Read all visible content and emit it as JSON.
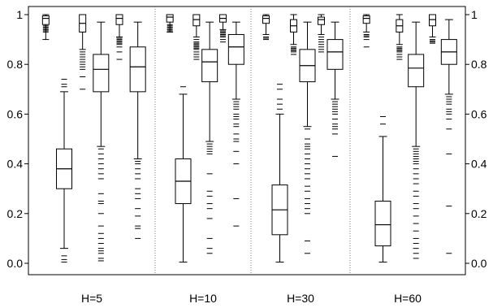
{
  "chart_data": {
    "type": "boxplot",
    "title": "",
    "xlabel": "",
    "ylabel": "",
    "ylim": [
      0.0,
      1.0
    ],
    "yticks": [
      0.0,
      0.2,
      0.4,
      0.6,
      0.8,
      1.0
    ],
    "ytick_labels": [
      "0.0",
      "0.2",
      "0.4",
      "0.6",
      "0.8",
      "1"
    ],
    "y_axis_both_sides": true,
    "grid": false,
    "group_separators": "dotted",
    "groups": [
      {
        "label": "H=5",
        "boxes": [
          {
            "whisker_low": 0.9,
            "q1": 0.96,
            "median": 0.985,
            "q3": 0.995,
            "whisker_high": 1.0,
            "outliers": [
              0.955,
              0.95,
              0.945,
              0.94,
              0.935,
              0.93
            ]
          },
          {
            "whisker_low": 0.06,
            "q1": 0.3,
            "median": 0.38,
            "q3": 0.46,
            "whisker_high": 0.69,
            "outliers": [
              0.74,
              0.72,
              0.71,
              0.03,
              0.015,
              0.005
            ]
          },
          {
            "whisker_low": 0.86,
            "q1": 0.93,
            "median": 0.965,
            "q3": 1.0,
            "whisker_high": 1.0,
            "outliers": [
              0.85,
              0.84,
              0.83,
              0.82,
              0.81,
              0.8,
              0.79,
              0.78,
              0.75,
              0.7
            ]
          },
          {
            "whisker_low": 0.47,
            "q1": 0.69,
            "median": 0.78,
            "q3": 0.84,
            "whisker_high": 0.97,
            "outliers": [
              0.46,
              0.44,
              0.42,
              0.4,
              0.38,
              0.36,
              0.34,
              0.28,
              0.25,
              0.24,
              0.2,
              0.15,
              0.12,
              0.1,
              0.08,
              0.06,
              0.05,
              0.04,
              0.02,
              0.01
            ]
          },
          {
            "whisker_low": 0.91,
            "q1": 0.96,
            "median": 0.985,
            "q3": 1.0,
            "whisker_high": 1.0,
            "outliers": [
              0.905,
              0.9,
              0.895,
              0.89,
              0.885,
              0.88,
              0.87,
              0.85,
              0.82
            ]
          },
          {
            "whisker_low": 0.42,
            "q1": 0.69,
            "median": 0.79,
            "q3": 0.87,
            "whisker_high": 0.97,
            "outliers": [
              0.41,
              0.4,
              0.38,
              0.36,
              0.34,
              0.3,
              0.28,
              0.26,
              0.22,
              0.19,
              0.15,
              0.14,
              0.1
            ]
          }
        ]
      },
      {
        "label": "H=10",
        "boxes": [
          {
            "whisker_low": 0.93,
            "q1": 0.97,
            "median": 0.99,
            "q3": 1.0,
            "whisker_high": 1.0,
            "outliers": [
              0.96,
              0.955,
              0.95,
              0.945,
              0.94,
              0.935,
              0.93
            ]
          },
          {
            "whisker_low": 0.005,
            "q1": 0.24,
            "median": 0.33,
            "q3": 0.42,
            "whisker_high": 0.68,
            "outliers": [
              0.71
            ]
          },
          {
            "whisker_low": 0.91,
            "q1": 0.955,
            "median": 0.98,
            "q3": 1.0,
            "whisker_high": 1.0,
            "outliers": [
              0.9,
              0.89,
              0.885,
              0.88,
              0.875,
              0.87,
              0.865,
              0.86,
              0.85,
              0.84,
              0.83,
              0.82
            ]
          },
          {
            "whisker_low": 0.49,
            "q1": 0.73,
            "median": 0.81,
            "q3": 0.86,
            "whisker_high": 0.97,
            "outliers": [
              0.48,
              0.47,
              0.46,
              0.45,
              0.44,
              0.36,
              0.29,
              0.27,
              0.24,
              0.22,
              0.18,
              0.1,
              0.06,
              0.04
            ]
          },
          {
            "whisker_low": 0.94,
            "q1": 0.97,
            "median": 0.985,
            "q3": 1.0,
            "whisker_high": 1.0,
            "outliers": [
              0.935,
              0.93,
              0.925,
              0.92,
              0.915,
              0.91,
              0.9,
              0.89
            ]
          },
          {
            "whisker_low": 0.66,
            "q1": 0.8,
            "median": 0.87,
            "q3": 0.92,
            "whisker_high": 0.97,
            "outliers": [
              0.65,
              0.64,
              0.63,
              0.62,
              0.6,
              0.59,
              0.58,
              0.56,
              0.55,
              0.52,
              0.5,
              0.49,
              0.45,
              0.4,
              0.26,
              0.15
            ]
          }
        ]
      },
      {
        "label": "H=30",
        "boxes": [
          {
            "whisker_low": 0.92,
            "q1": 0.965,
            "median": 0.985,
            "q3": 0.995,
            "whisker_high": 1.0,
            "outliers": [
              0.92,
              0.91,
              0.905,
              0.9
            ]
          },
          {
            "whisker_low": 0.005,
            "q1": 0.115,
            "median": 0.215,
            "q3": 0.315,
            "whisker_high": 0.6,
            "outliers": [
              0.72,
              0.7,
              0.66,
              0.64,
              0.62
            ]
          },
          {
            "whisker_low": 0.88,
            "q1": 0.93,
            "median": 0.955,
            "q3": 0.98,
            "whisker_high": 1.0,
            "outliers": [
              0.87,
              0.865,
              0.86,
              0.855,
              0.85,
              0.84
            ]
          },
          {
            "whisker_low": 0.55,
            "q1": 0.73,
            "median": 0.795,
            "q3": 0.86,
            "whisker_high": 0.97,
            "outliers": [
              0.54,
              0.5,
              0.48,
              0.47,
              0.46,
              0.44,
              0.42,
              0.4,
              0.38,
              0.36,
              0.34,
              0.31,
              0.29,
              0.26,
              0.24,
              0.22,
              0.2,
              0.09,
              0.04
            ]
          },
          {
            "whisker_low": 0.92,
            "q1": 0.96,
            "median": 0.98,
            "q3": 0.99,
            "whisker_high": 1.0,
            "outliers": [
              0.91,
              0.9,
              0.89,
              0.88,
              0.87,
              0.86,
              0.85
            ]
          },
          {
            "whisker_low": 0.66,
            "q1": 0.78,
            "median": 0.85,
            "q3": 0.9,
            "whisker_high": 0.97,
            "outliers": [
              0.65,
              0.64,
              0.63,
              0.62,
              0.61,
              0.6,
              0.58,
              0.56,
              0.55,
              0.54,
              0.52,
              0.43
            ]
          }
        ]
      },
      {
        "label": "H=60",
        "boxes": [
          {
            "whisker_low": 0.93,
            "q1": 0.965,
            "median": 0.985,
            "q3": 0.995,
            "whisker_high": 1.0,
            "outliers": [
              0.92,
              0.915,
              0.91,
              0.9,
              0.87
            ]
          },
          {
            "whisker_low": 0.005,
            "q1": 0.07,
            "median": 0.155,
            "q3": 0.25,
            "whisker_high": 0.51,
            "outliers": [
              0.59,
              0.56
            ]
          },
          {
            "whisker_low": 0.88,
            "q1": 0.93,
            "median": 0.955,
            "q3": 0.98,
            "whisker_high": 1.0,
            "outliers": [
              0.87,
              0.865,
              0.86,
              0.855,
              0.85,
              0.84,
              0.83,
              0.82
            ]
          },
          {
            "whisker_low": 0.47,
            "q1": 0.71,
            "median": 0.785,
            "q3": 0.84,
            "whisker_high": 0.97,
            "outliers": [
              0.46,
              0.45,
              0.44,
              0.43,
              0.42,
              0.41,
              0.4,
              0.38,
              0.36,
              0.34,
              0.32,
              0.29,
              0.27,
              0.24,
              0.22,
              0.19,
              0.16,
              0.13,
              0.1,
              0.08,
              0.06,
              0.04,
              0.02
            ]
          },
          {
            "whisker_low": 0.91,
            "q1": 0.955,
            "median": 0.98,
            "q3": 1.0,
            "whisker_high": 1.0,
            "outliers": [
              0.9,
              0.895,
              0.89,
              0.885
            ]
          },
          {
            "whisker_low": 0.68,
            "q1": 0.8,
            "median": 0.85,
            "q3": 0.9,
            "whisker_high": 0.98,
            "outliers": [
              0.67,
              0.66,
              0.65,
              0.64,
              0.62,
              0.61,
              0.6,
              0.58,
              0.54,
              0.44,
              0.23,
              0.04
            ]
          }
        ]
      }
    ]
  }
}
